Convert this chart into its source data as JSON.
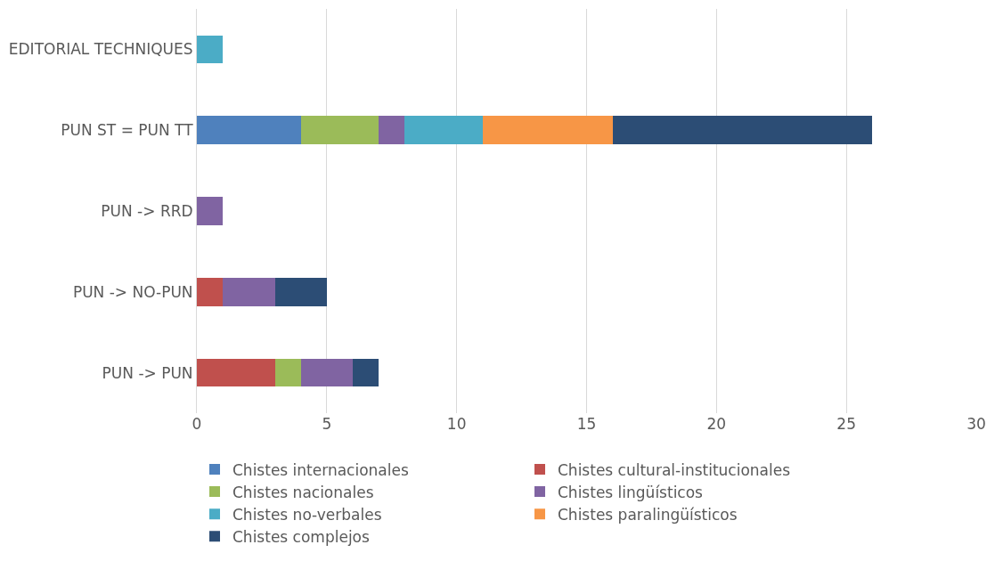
{
  "chart_data": {
    "type": "bar",
    "orientation": "horizontal",
    "stacked": true,
    "categories": [
      "EDITORIAL TECHNIQUES",
      "PUN ST = PUN TT",
      "PUN -> RRD",
      "PUN -> NO-PUN",
      "PUN -> PUN"
    ],
    "series": [
      {
        "name": "Chistes internacionales",
        "color": "#4f81bd",
        "values": [
          0,
          4,
          0,
          0,
          0
        ]
      },
      {
        "name": "Chistes cultural-institucionales",
        "color": "#c0504d",
        "values": [
          0,
          0,
          0,
          1,
          3
        ]
      },
      {
        "name": "Chistes nacionales",
        "color": "#9bbb59",
        "values": [
          0,
          3,
          0,
          0,
          1
        ]
      },
      {
        "name": "Chistes lingüísticos",
        "color": "#8064a2",
        "values": [
          0,
          1,
          1,
          2,
          2
        ]
      },
      {
        "name": "Chistes no-verbales",
        "color": "#4bacc6",
        "values": [
          1,
          3,
          0,
          0,
          0
        ]
      },
      {
        "name": "Chistes paralingüísticos",
        "color": "#f79646",
        "values": [
          0,
          5,
          0,
          0,
          0
        ]
      },
      {
        "name": "Chistes complejos",
        "color": "#2c4d75",
        "values": [
          0,
          10,
          0,
          2,
          1
        ]
      }
    ],
    "xlim": [
      0,
      30
    ],
    "xticks": [
      0,
      5,
      10,
      15,
      20,
      25,
      30
    ],
    "grid": "x",
    "legend": "bottom"
  }
}
